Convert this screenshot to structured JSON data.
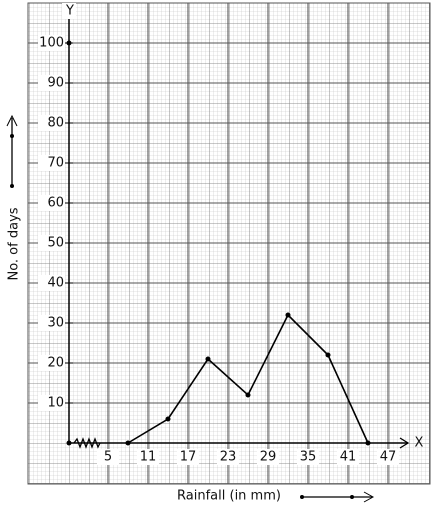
{
  "chart_data": {
    "type": "line",
    "x_label": "Rainfall (in mm)",
    "y_label": "No. of days",
    "x_axis_name": "X",
    "y_axis_name": "Y",
    "x": [
      8,
      14,
      20,
      26,
      32,
      38,
      44
    ],
    "values": [
      0,
      6,
      21,
      12,
      32,
      22,
      0
    ],
    "color": "#000000",
    "xlim": [
      5,
      47
    ],
    "xticks": [
      5,
      11,
      17,
      23,
      29,
      35,
      41,
      47
    ],
    "ylim": [
      0,
      100
    ],
    "yticks": [
      10,
      20,
      30,
      40,
      50,
      60,
      70,
      80,
      90,
      100
    ],
    "grid": true
  }
}
